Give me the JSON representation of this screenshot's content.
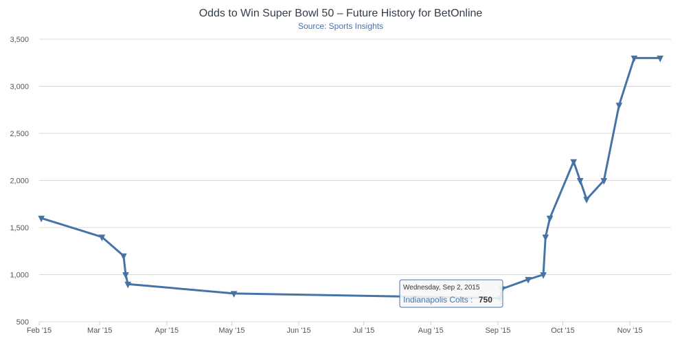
{
  "chart_data": {
    "type": "line",
    "title": "Odds to Win Super Bowl 50 – Future History for BetOnline",
    "subtitle": "Source: Sports Insights",
    "xlabel": "",
    "ylabel": "",
    "ylim": [
      500,
      3500
    ],
    "yticks": [
      500,
      1000,
      1500,
      2000,
      2500,
      3000,
      3500
    ],
    "ytick_labels": [
      "500",
      "1,000",
      "1,500",
      "2,000",
      "2,500",
      "3,000",
      "3,500"
    ],
    "xlim": [
      "2015-02-01",
      "2015-11-20"
    ],
    "xticks": [
      "2015-02-01",
      "2015-03-01",
      "2015-04-01",
      "2015-05-01",
      "2015-06-01",
      "2015-07-01",
      "2015-08-01",
      "2015-09-01",
      "2015-10-01",
      "2015-11-01"
    ],
    "xtick_labels": [
      "Feb '15",
      "Mar '15",
      "Apr '15",
      "May '15",
      "Jun '15",
      "Jul '15",
      "Aug '15",
      "Sep '15",
      "Oct '15",
      "Nov '15"
    ],
    "grid": true,
    "legend": "none",
    "line_color": "#4572a7",
    "series": [
      {
        "x": [
          "2015-02-02",
          "2015-03-02",
          "2015-03-12",
          "2015-03-13",
          "2015-03-14",
          "2015-05-02",
          "2015-09-02",
          "2015-09-03",
          "2015-09-15",
          "2015-09-22",
          "2015-09-23",
          "2015-09-25",
          "2015-10-06",
          "2015-10-09",
          "2015-10-12",
          "2015-10-20",
          "2015-10-27",
          "2015-11-03",
          "2015-11-15"
        ],
        "values": [
          1600,
          1400,
          1200,
          1000,
          900,
          800,
          750,
          850,
          950,
          1000,
          1400,
          1600,
          2200,
          2000,
          1800,
          2000,
          2800,
          3300,
          3300
        ]
      }
    ],
    "tooltip": {
      "date": "Wednesday, Sep 2, 2015",
      "series_label": "Indianapolis Colts :",
      "value": "750"
    }
  }
}
